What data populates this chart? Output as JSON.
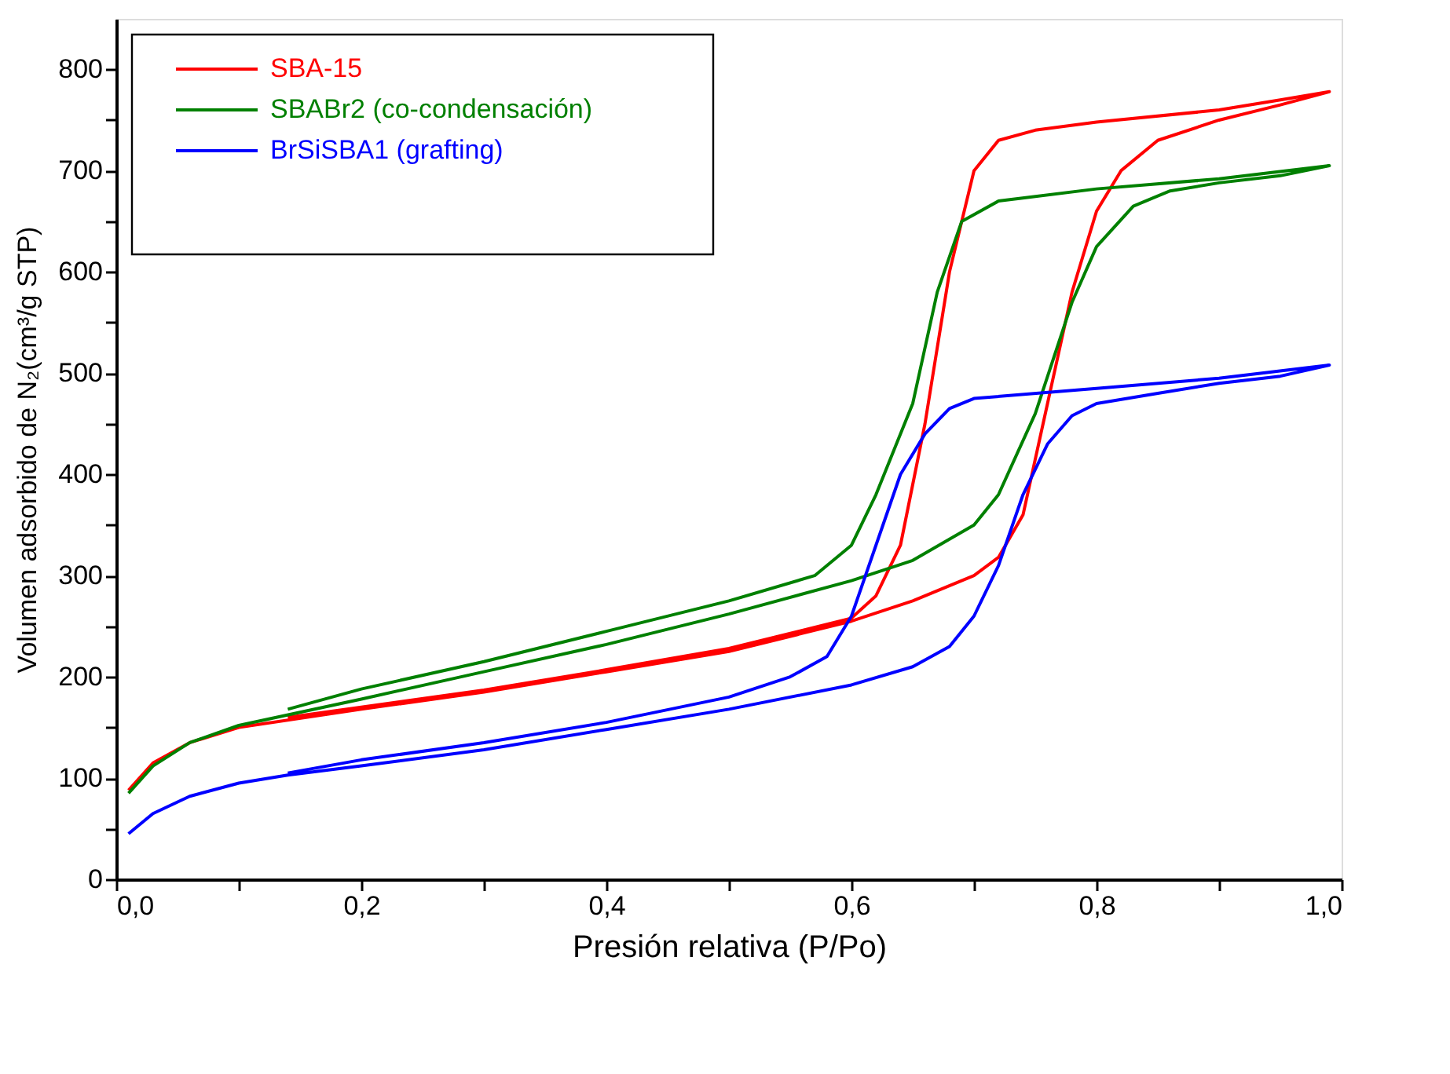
{
  "chart_data": {
    "type": "line",
    "xlabel": "Presión relativa (P/Po)",
    "ylabel": "Volumen adsorbido de N₂(cm³/g STP)",
    "xlim": [
      0,
      1
    ],
    "ylim": [
      0,
      850
    ],
    "xticks": [
      {
        "value": 0,
        "label": "0,0"
      },
      {
        "value": 0.1,
        "label": null
      },
      {
        "value": 0.2,
        "label": "0,2"
      },
      {
        "value": 0.3,
        "label": null
      },
      {
        "value": 0.4,
        "label": "0,4"
      },
      {
        "value": 0.5,
        "label": null
      },
      {
        "value": 0.6,
        "label": "0,6"
      },
      {
        "value": 0.7,
        "label": null
      },
      {
        "value": 0.8,
        "label": "0,8"
      },
      {
        "value": 0.9,
        "label": null
      },
      {
        "value": 1,
        "label": "1,0"
      }
    ],
    "yticks": [
      0,
      {
        "value": 50,
        "label": null
      },
      100,
      {
        "value": 150,
        "label": null
      },
      200,
      {
        "value": 250,
        "label": null
      },
      300,
      {
        "value": 350,
        "label": null
      },
      400,
      {
        "value": 450,
        "label": null
      },
      500,
      {
        "value": 550,
        "label": null
      },
      600,
      {
        "value": 650,
        "label": null
      },
      700,
      {
        "value": 750,
        "label": null
      },
      800
    ],
    "grid": false,
    "legend": "top left",
    "marker": "none",
    "line_style": "solid",
    "series": [
      {
        "name": "SBA-15",
        "color": "#ff0000",
        "x": [
          0.01,
          0.03,
          0.06,
          0.1,
          0.2,
          0.3,
          0.4,
          0.5,
          0.6,
          0.65,
          0.7,
          0.72,
          0.74,
          0.76,
          0.78,
          0.8,
          0.82,
          0.85,
          0.9,
          0.95,
          0.99,
          0.95,
          0.9,
          0.8,
          0.75,
          0.72,
          0.7,
          0.68,
          0.66,
          0.64,
          0.62,
          0.6,
          0.5,
          0.4,
          0.3,
          0.2,
          0.14
        ],
        "values": [
          88,
          115,
          135,
          150,
          168,
          185,
          205,
          225,
          255,
          275,
          300,
          318,
          360,
          470,
          580,
          660,
          700,
          730,
          750,
          765,
          778,
          770,
          760,
          748,
          740,
          730,
          700,
          600,
          450,
          330,
          280,
          258,
          228,
          207,
          187,
          170,
          160
        ]
      },
      {
        "name": "SBABr2 (co-condensación)",
        "color": "#008000",
        "x": [
          0.01,
          0.03,
          0.06,
          0.1,
          0.2,
          0.3,
          0.4,
          0.5,
          0.6,
          0.65,
          0.7,
          0.72,
          0.75,
          0.78,
          0.8,
          0.83,
          0.86,
          0.9,
          0.95,
          0.99,
          0.9,
          0.8,
          0.72,
          0.69,
          0.67,
          0.65,
          0.62,
          0.6,
          0.57,
          0.5,
          0.4,
          0.3,
          0.2,
          0.14
        ],
        "values": [
          85,
          112,
          135,
          152,
          178,
          205,
          232,
          262,
          295,
          315,
          350,
          380,
          460,
          570,
          625,
          665,
          680,
          688,
          695,
          705,
          692,
          682,
          670,
          650,
          580,
          470,
          380,
          330,
          300,
          275,
          245,
          215,
          188,
          168
        ]
      },
      {
        "name": "BrSiSBA1 (grafting)",
        "color": "#0000ff",
        "x": [
          0.01,
          0.03,
          0.06,
          0.1,
          0.14,
          0.2,
          0.3,
          0.4,
          0.5,
          0.6,
          0.65,
          0.68,
          0.7,
          0.72,
          0.74,
          0.76,
          0.78,
          0.8,
          0.85,
          0.9,
          0.95,
          0.99,
          0.9,
          0.8,
          0.7,
          0.68,
          0.66,
          0.64,
          0.62,
          0.6,
          0.58,
          0.55,
          0.5,
          0.4,
          0.3,
          0.2,
          0.14
        ],
        "values": [
          45,
          65,
          82,
          95,
          103,
          112,
          128,
          148,
          168,
          192,
          210,
          230,
          260,
          310,
          380,
          430,
          458,
          470,
          480,
          490,
          497,
          508,
          495,
          485,
          475,
          465,
          440,
          400,
          330,
          260,
          220,
          200,
          180,
          155,
          135,
          118,
          105
        ]
      }
    ]
  }
}
